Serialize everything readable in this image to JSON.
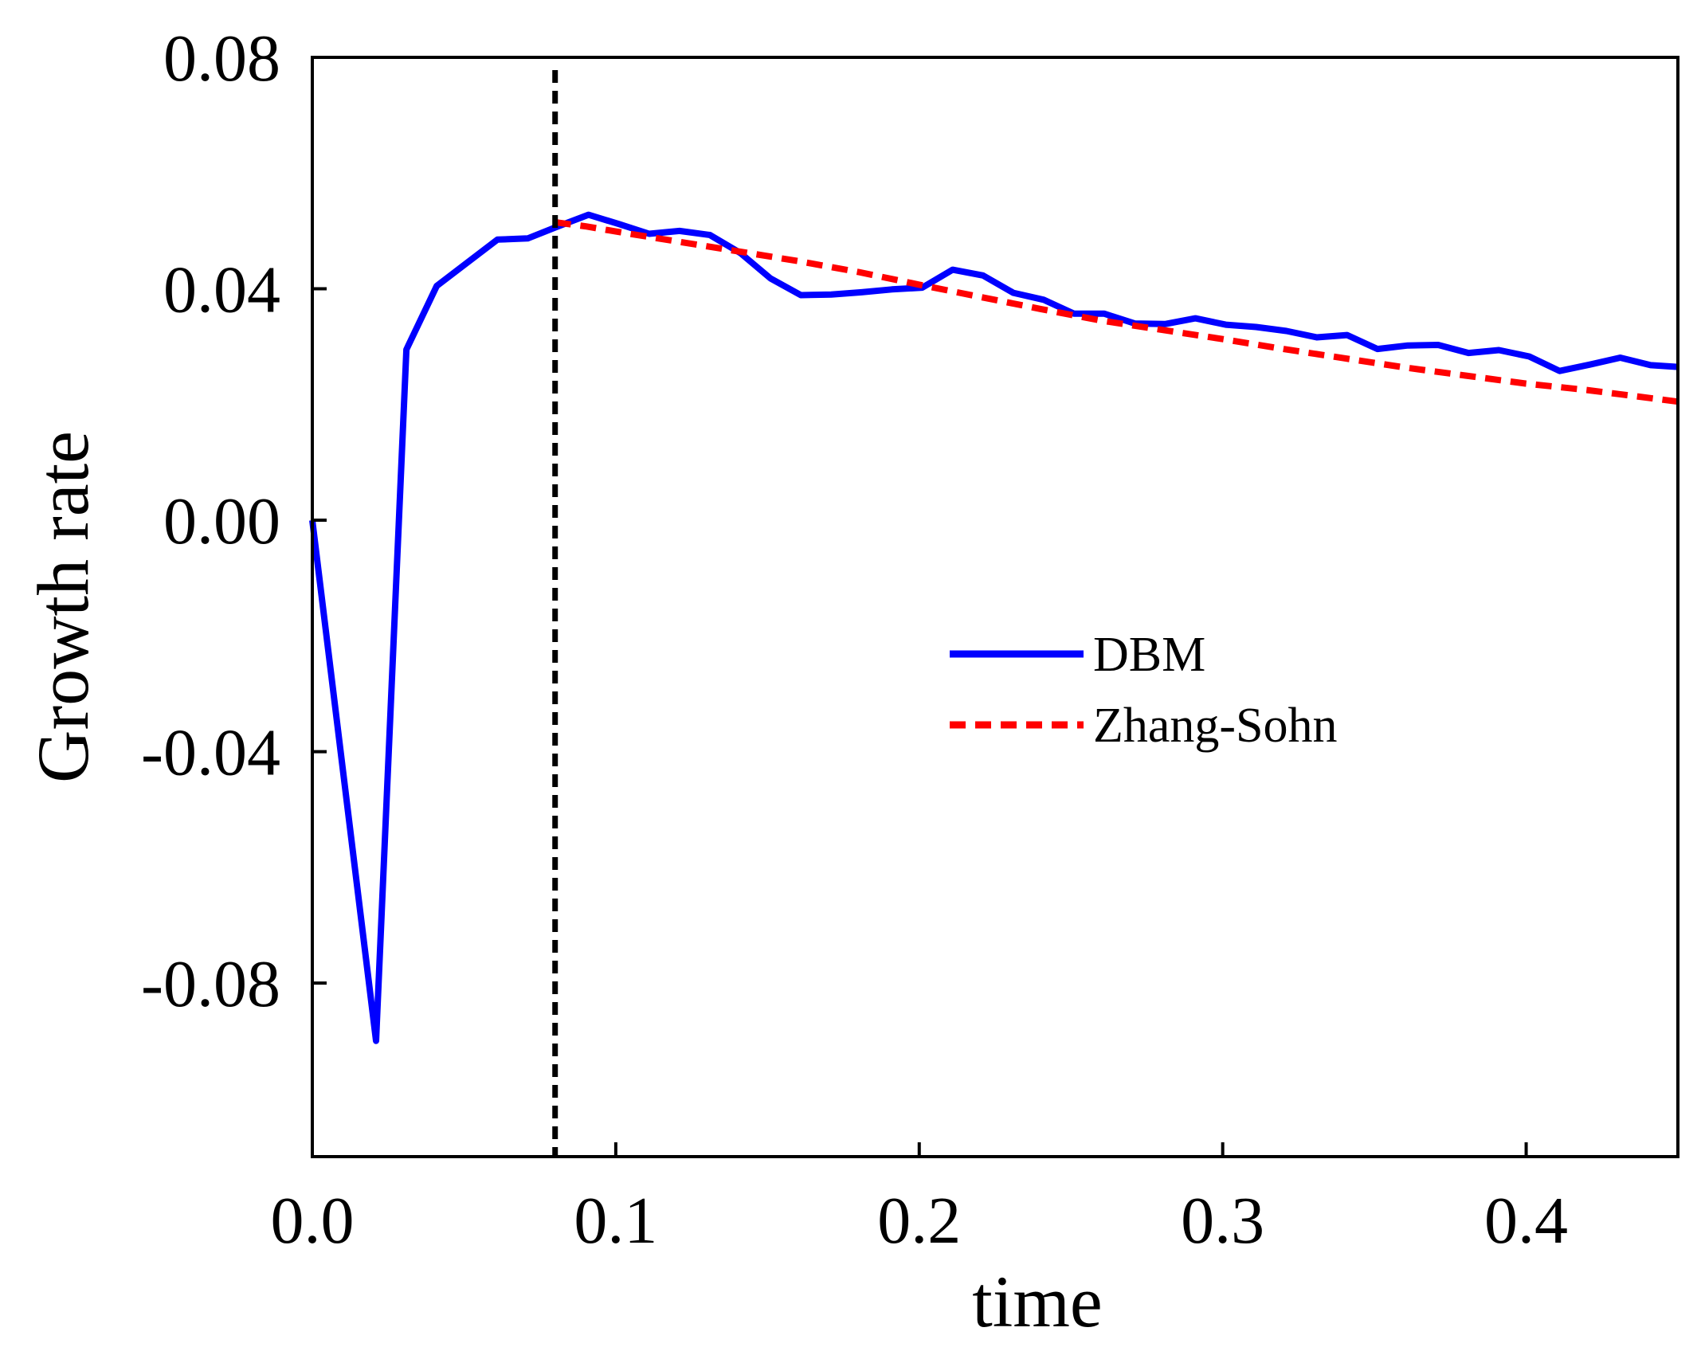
{
  "chart_data": {
    "type": "line",
    "title": "",
    "xlabel": "time",
    "ylabel": "Growth rate",
    "xlim": [
      0.0,
      0.45
    ],
    "ylim": [
      -0.11,
      0.08
    ],
    "xticks": [
      0.0,
      0.1,
      0.2,
      0.3,
      0.4
    ],
    "xtick_labels": [
      "0.0",
      "0.1",
      "0.2",
      "0.3",
      "0.4"
    ],
    "yticks": [
      0.08,
      0.04,
      0.0,
      -0.04,
      -0.08
    ],
    "ytick_labels": [
      "0.08",
      "0.04",
      "0.00",
      "-0.04",
      "-0.08"
    ],
    "grid": false,
    "legend_position": "center-right",
    "reference_line": {
      "type": "vertical",
      "x": 0.08,
      "style": "dashed",
      "color": "#000000"
    },
    "series": [
      {
        "name": "DBM",
        "color": "#0000ff",
        "style": "solid",
        "x": [
          0.0,
          0.021,
          0.031,
          0.041,
          0.051,
          0.061,
          0.071,
          0.081,
          0.091,
          0.101,
          0.111,
          0.121,
          0.131,
          0.141,
          0.151,
          0.161,
          0.171,
          0.181,
          0.191,
          0.201,
          0.211,
          0.221,
          0.231,
          0.241,
          0.251,
          0.261,
          0.271,
          0.281,
          0.291,
          0.301,
          0.311,
          0.321,
          0.331,
          0.341,
          0.351,
          0.361,
          0.371,
          0.381,
          0.391,
          0.401,
          0.411,
          0.421,
          0.431,
          0.441,
          0.45
        ],
        "y": [
          0.0,
          -0.09,
          0.0295,
          0.0405,
          0.0445,
          0.0485,
          0.0487,
          0.0508,
          0.0528,
          0.0512,
          0.0495,
          0.05,
          0.0493,
          0.0462,
          0.0418,
          0.0389,
          0.039,
          0.0394,
          0.0399,
          0.0402,
          0.0433,
          0.0423,
          0.0393,
          0.0381,
          0.0357,
          0.0357,
          0.034,
          0.0339,
          0.0349,
          0.0338,
          0.0334,
          0.0327,
          0.0316,
          0.032,
          0.0296,
          0.0302,
          0.0303,
          0.0289,
          0.0294,
          0.0283,
          0.0258,
          0.0269,
          0.0281,
          0.0268,
          0.0265
        ]
      },
      {
        "name": "Zhang-Sohn",
        "color": "#ff0000",
        "style": "dashed",
        "x": [
          0.08,
          0.09,
          0.1,
          0.12,
          0.14,
          0.16,
          0.18,
          0.2,
          0.22,
          0.24,
          0.26,
          0.28,
          0.3,
          0.32,
          0.34,
          0.36,
          0.38,
          0.4,
          0.42,
          0.45
        ],
        "y": [
          0.0515,
          0.0508,
          0.0499,
          0.0482,
          0.0465,
          0.0448,
          0.0429,
          0.0407,
          0.0386,
          0.0365,
          0.0345,
          0.0329,
          0.0313,
          0.0296,
          0.028,
          0.0264,
          0.025,
          0.0236,
          0.0225,
          0.0205
        ]
      }
    ]
  }
}
